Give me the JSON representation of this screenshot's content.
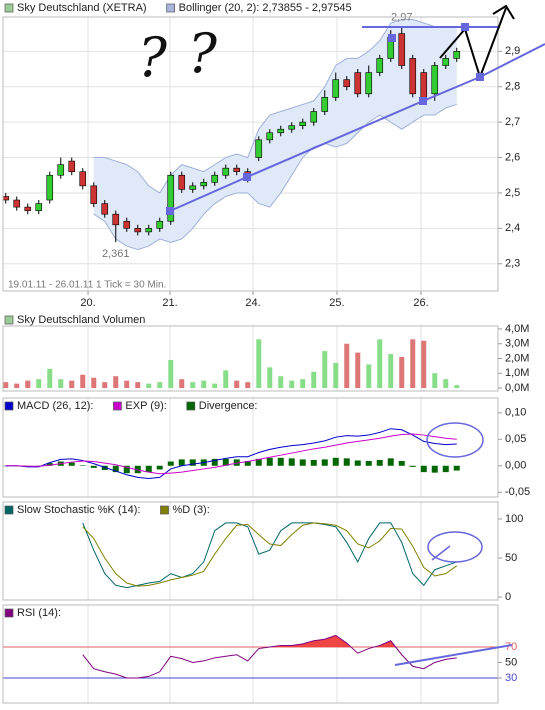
{
  "chart_data": [
    {
      "type": "candlestick",
      "name": "Sky Deutschland (XETRA)",
      "color": "#99cc99",
      "up_color": "#33cc33",
      "down_color": "#cc3333",
      "subtitle": "19.01.11 - 26.01.11   1 Tick = 30 Min.",
      "scribbles": [
        "?",
        "?"
      ],
      "x": [
        0,
        1,
        2,
        3,
        4,
        5,
        6,
        7,
        8,
        9,
        10,
        11,
        12,
        13,
        14,
        15,
        16,
        17,
        18,
        19,
        20,
        21,
        22,
        23,
        24,
        25,
        26,
        27,
        28,
        29,
        30,
        31,
        32,
        33,
        34,
        35,
        36,
        37,
        38,
        39,
        40,
        41
      ],
      "open": [
        2.49,
        2.48,
        2.46,
        2.45,
        2.48,
        2.55,
        2.59,
        2.56,
        2.52,
        2.47,
        2.44,
        2.42,
        2.4,
        2.39,
        2.4,
        2.42,
        2.55,
        2.51,
        2.52,
        2.53,
        2.55,
        2.57,
        2.56,
        2.6,
        2.65,
        2.67,
        2.68,
        2.69,
        2.7,
        2.73,
        2.77,
        2.82,
        2.84,
        2.78,
        2.84,
        2.88,
        2.95,
        2.88,
        2.84,
        2.78,
        2.86,
        2.88
      ],
      "high": [
        2.5,
        2.49,
        2.47,
        2.48,
        2.56,
        2.6,
        2.6,
        2.57,
        2.53,
        2.48,
        2.45,
        2.43,
        2.41,
        2.41,
        2.43,
        2.56,
        2.56,
        2.53,
        2.54,
        2.56,
        2.58,
        2.58,
        2.57,
        2.66,
        2.68,
        2.69,
        2.7,
        2.71,
        2.74,
        2.79,
        2.84,
        2.83,
        2.85,
        2.86,
        2.89,
        2.96,
        2.97,
        2.89,
        2.85,
        2.87,
        2.89,
        2.91
      ],
      "low": [
        2.47,
        2.45,
        2.44,
        2.44,
        2.47,
        2.54,
        2.55,
        2.51,
        2.46,
        2.43,
        2.361,
        2.39,
        2.38,
        2.38,
        2.39,
        2.41,
        2.5,
        2.5,
        2.51,
        2.52,
        2.54,
        2.55,
        2.53,
        2.59,
        2.64,
        2.66,
        2.67,
        2.68,
        2.69,
        2.72,
        2.76,
        2.79,
        2.77,
        2.77,
        2.83,
        2.87,
        2.85,
        2.77,
        2.75,
        2.76,
        2.85,
        2.87
      ],
      "close": [
        2.48,
        2.46,
        2.45,
        2.47,
        2.55,
        2.58,
        2.56,
        2.52,
        2.47,
        2.44,
        2.41,
        2.4,
        2.39,
        2.4,
        2.42,
        2.55,
        2.51,
        2.52,
        2.53,
        2.55,
        2.57,
        2.56,
        2.54,
        2.65,
        2.67,
        2.68,
        2.69,
        2.7,
        2.73,
        2.77,
        2.82,
        2.8,
        2.78,
        2.84,
        2.88,
        2.94,
        2.86,
        2.78,
        2.76,
        2.86,
        2.88,
        2.9
      ],
      "bands": {
        "name": "Bollinger (20, 2): 2,73855 - 2,97545",
        "color": "#aab4dd",
        "fill": "#dfe9f7",
        "line_color": "#9fb0d8",
        "upper": [
          null,
          null,
          null,
          null,
          null,
          null,
          null,
          null,
          2.6,
          2.6,
          2.59,
          2.58,
          2.56,
          2.52,
          2.5,
          2.55,
          2.58,
          2.57,
          2.56,
          2.58,
          2.6,
          2.61,
          2.6,
          2.68,
          2.72,
          2.73,
          2.74,
          2.75,
          2.76,
          2.8,
          2.86,
          2.88,
          2.88,
          2.9,
          2.93,
          2.98,
          2.99,
          2.99,
          2.98,
          2.97,
          2.97,
          2.97
        ],
        "lower": [
          null,
          null,
          null,
          null,
          null,
          null,
          null,
          null,
          2.44,
          2.42,
          2.37,
          2.35,
          2.34,
          2.35,
          2.37,
          2.36,
          2.37,
          2.4,
          2.44,
          2.47,
          2.49,
          2.5,
          2.5,
          2.47,
          2.46,
          2.5,
          2.55,
          2.6,
          2.63,
          2.64,
          2.63,
          2.64,
          2.67,
          2.7,
          2.72,
          2.7,
          2.68,
          2.7,
          2.72,
          2.72,
          2.74,
          2.75
        ]
      },
      "annotations": [
        {
          "index": 36,
          "at": "high",
          "label": "2,97"
        },
        {
          "index": 10,
          "at": "low",
          "label": "2,361"
        }
      ],
      "xlim": [
        -0.25,
        44.75
      ],
      "xticks": [
        {
          "value": 7.48,
          "label": "20."
        },
        {
          "value": 14.93,
          "label": "21."
        },
        {
          "value": 22.48,
          "label": "24."
        },
        {
          "value": 30.11,
          "label": "25."
        },
        {
          "value": 37.75,
          "label": "26."
        }
      ],
      "ylim": [
        2.223,
        2.997
      ],
      "yticks": [
        {
          "value": 2.3,
          "label": "2,3"
        },
        {
          "value": 2.4,
          "label": "2,4"
        },
        {
          "value": 2.5,
          "label": "2,5"
        },
        {
          "value": 2.6,
          "label": "2,6"
        },
        {
          "value": 2.7,
          "label": "2,7"
        },
        {
          "value": 2.8,
          "label": "2,8"
        },
        {
          "value": 2.9,
          "label": "2,9"
        }
      ],
      "grid": true
    },
    {
      "type": "bar",
      "series": [
        {
          "name": "Sky Deutschland Volumen",
          "color": "#99cc99",
          "values": [
            0.4,
            0.3,
            0.5,
            0.6,
            1.3,
            0.6,
            0.5,
            0.9,
            0.7,
            0.4,
            0.8,
            0.5,
            0.4,
            0.3,
            0.4,
            1.9,
            0.6,
            0.4,
            0.5,
            0.3,
            1.2,
            0.5,
            0.4,
            3.3,
            1.4,
            0.8,
            0.5,
            0.6,
            1.1,
            2.5,
            1.7,
            3.0,
            2.4,
            1.6,
            3.3,
            2.3,
            2.1,
            3.3,
            3.2,
            1.0,
            0.6,
            0.2
          ]
        }
      ],
      "x": [
        0,
        1,
        2,
        3,
        4,
        5,
        6,
        7,
        8,
        9,
        10,
        11,
        12,
        13,
        14,
        15,
        16,
        17,
        18,
        19,
        20,
        21,
        22,
        23,
        24,
        25,
        26,
        27,
        28,
        29,
        30,
        31,
        32,
        33,
        34,
        35,
        36,
        37,
        38,
        39,
        40,
        41
      ],
      "xlim": [
        -0.25,
        44.75
      ],
      "ylim": [
        -0.2,
        4.2
      ],
      "yticks": [
        {
          "value": 0,
          "label": "0,0M"
        },
        {
          "value": 1,
          "label": "1,0M"
        },
        {
          "value": 2,
          "label": "2,0M"
        },
        {
          "value": 3,
          "label": "3,0M"
        },
        {
          "value": 4,
          "label": "4,0M"
        }
      ],
      "grid": false
    },
    {
      "type": "line",
      "series": [
        {
          "name": "MACD (26, 12):",
          "color": "#0000cc",
          "values": [
            0.0,
            0.0,
            -0.002,
            -0.002,
            0.006,
            0.012,
            0.013,
            0.01,
            0.004,
            -0.003,
            -0.01,
            -0.017,
            -0.022,
            -0.024,
            -0.022,
            -0.006,
            0.0,
            0.003,
            0.006,
            0.01,
            0.014,
            0.017,
            0.017,
            0.025,
            0.031,
            0.035,
            0.038,
            0.04,
            0.043,
            0.047,
            0.054,
            0.057,
            0.056,
            0.058,
            0.063,
            0.07,
            0.068,
            0.058,
            0.046,
            0.042,
            0.04,
            0.041
          ]
        },
        {
          "name": "EXP (9):",
          "color": "#cc00cc",
          "values": [
            0.0,
            0.0,
            -0.001,
            -0.001,
            0.001,
            0.004,
            0.007,
            0.009,
            0.008,
            0.005,
            0.002,
            -0.003,
            -0.008,
            -0.012,
            -0.015,
            -0.014,
            -0.012,
            -0.009,
            -0.006,
            -0.003,
            0.001,
            0.005,
            0.008,
            0.012,
            0.016,
            0.02,
            0.024,
            0.028,
            0.032,
            0.035,
            0.039,
            0.043,
            0.046,
            0.049,
            0.052,
            0.056,
            0.059,
            0.06,
            0.058,
            0.055,
            0.052,
            0.05
          ]
        },
        {
          "name": "Divergence:",
          "color": "#006600",
          "kind": "bar",
          "values": [
            0.0,
            0.0,
            -0.001,
            -0.001,
            0.005,
            0.008,
            0.006,
            0.001,
            -0.004,
            -0.008,
            -0.012,
            -0.014,
            -0.014,
            -0.012,
            -0.007,
            0.008,
            0.012,
            0.012,
            0.012,
            0.013,
            0.013,
            0.012,
            0.009,
            0.013,
            0.015,
            0.015,
            0.014,
            0.012,
            0.011,
            0.012,
            0.015,
            0.014,
            0.01,
            0.009,
            0.011,
            0.014,
            0.009,
            -0.002,
            -0.012,
            -0.013,
            -0.012,
            -0.009
          ]
        }
      ],
      "x": [
        0,
        1,
        2,
        3,
        4,
        5,
        6,
        7,
        8,
        9,
        10,
        11,
        12,
        13,
        14,
        15,
        16,
        17,
        18,
        19,
        20,
        21,
        22,
        23,
        24,
        25,
        26,
        27,
        28,
        29,
        30,
        31,
        32,
        33,
        34,
        35,
        36,
        37,
        38,
        39,
        40,
        41
      ],
      "xlim": [
        -0.25,
        44.75
      ],
      "ylim": [
        -0.059,
        0.128
      ],
      "yticks": [
        {
          "value": -0.05,
          "label": "-0,05"
        },
        {
          "value": 0,
          "label": "0,00"
        },
        {
          "value": 0.05,
          "label": "0,05"
        },
        {
          "value": 0.1,
          "label": "0,10"
        }
      ],
      "grid": false
    },
    {
      "type": "line",
      "series": [
        {
          "name": "Slow Stochastic %K (14):",
          "color": "#006666",
          "values": [
            null,
            null,
            null,
            null,
            null,
            null,
            null,
            95,
            60,
            30,
            15,
            12,
            15,
            18,
            20,
            30,
            25,
            30,
            45,
            85,
            95,
            95,
            90,
            55,
            60,
            85,
            95,
            95,
            95,
            93,
            90,
            70,
            45,
            75,
            95,
            95,
            70,
            30,
            15,
            35,
            40,
            45
          ]
        },
        {
          "name": "%D (3):",
          "color": "#808000",
          "values": [
            null,
            null,
            null,
            null,
            null,
            null,
            null,
            90,
            75,
            50,
            30,
            18,
            14,
            15,
            18,
            22,
            25,
            28,
            33,
            55,
            75,
            92,
            93,
            80,
            68,
            66,
            80,
            92,
            95,
            94,
            92,
            85,
            68,
            63,
            72,
            88,
            87,
            65,
            38,
            27,
            30,
            40
          ]
        }
      ],
      "x": [
        0,
        1,
        2,
        3,
        4,
        5,
        6,
        7,
        8,
        9,
        10,
        11,
        12,
        13,
        14,
        15,
        16,
        17,
        18,
        19,
        20,
        21,
        22,
        23,
        24,
        25,
        26,
        27,
        28,
        29,
        30,
        31,
        32,
        33,
        34,
        35,
        36,
        37,
        38,
        39,
        40,
        41
      ],
      "xlim": [
        -0.25,
        44.75
      ],
      "ylim": [
        -3.8,
        121.8
      ],
      "yticks": [
        0,
        50,
        100
      ],
      "grid": false
    },
    {
      "type": "line",
      "series": [
        {
          "name": "RSI (14):",
          "color": "#800080",
          "values": [
            null,
            null,
            null,
            null,
            null,
            null,
            null,
            60,
            42,
            38,
            35,
            30,
            30,
            32,
            38,
            58,
            55,
            50,
            52,
            56,
            58,
            60,
            52,
            68,
            70,
            72,
            72,
            74,
            78,
            80,
            85,
            75,
            62,
            68,
            72,
            78,
            60,
            45,
            42,
            50,
            54,
            56
          ]
        }
      ],
      "reference_lines": [
        {
          "value": 70,
          "color": "#e06060",
          "fill": "#ee4444"
        },
        {
          "value": 30,
          "color": "#4444cc"
        }
      ],
      "x": [
        0,
        1,
        2,
        3,
        4,
        5,
        6,
        7,
        8,
        9,
        10,
        11,
        12,
        13,
        14,
        15,
        16,
        17,
        18,
        19,
        20,
        21,
        22,
        23,
        24,
        25,
        26,
        27,
        28,
        29,
        30,
        31,
        32,
        33,
        34,
        35,
        36,
        37,
        38,
        39,
        40,
        41
      ],
      "xlim": [
        -0.25,
        44.75
      ],
      "ylim": [
        -2.3,
        124.2
      ],
      "yticks": [
        30,
        50,
        70
      ],
      "grid": false
    }
  ]
}
